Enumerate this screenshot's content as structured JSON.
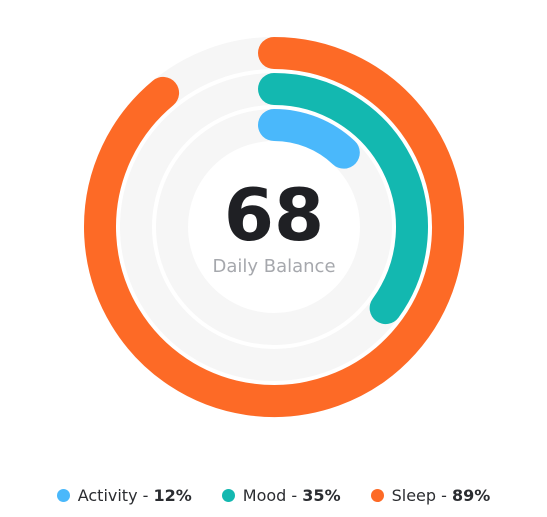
{
  "chart_data": {
    "type": "radial-bar",
    "center_value": "68",
    "center_label": "Daily Balance",
    "track_color": "#f6f6f6",
    "series": [
      {
        "name": "Activity",
        "value": 12,
        "value_label": "12%",
        "color": "#4ab8fb"
      },
      {
        "name": "Mood",
        "value": 35,
        "value_label": "35%",
        "color": "#13b8b0"
      },
      {
        "name": "Sleep",
        "value": 89,
        "value_label": "89%",
        "color": "#fd6a26"
      }
    ]
  }
}
